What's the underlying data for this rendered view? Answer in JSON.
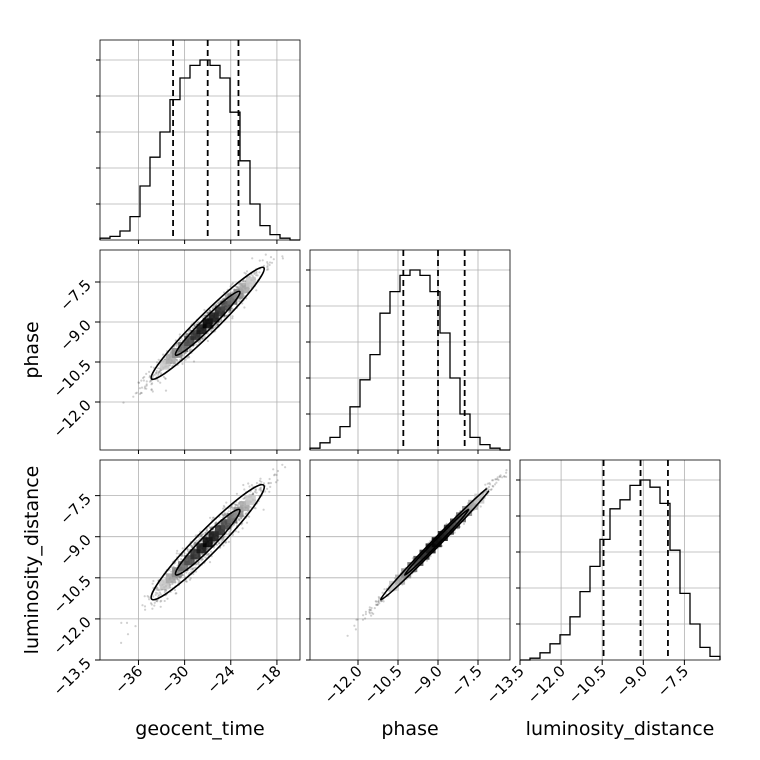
{
  "chart_data": {
    "type": "corner",
    "parameters": [
      "geocent_time",
      "phase",
      "luminosity_distance"
    ],
    "ranges": {
      "geocent_time": [
        -41,
        -15
      ],
      "phase": [
        -13.8,
        -6.3
      ],
      "luminosity_distance": [
        -13.5,
        -6.2
      ]
    },
    "ticks": {
      "geocent_time": [
        -36,
        -30,
        -24,
        -18
      ],
      "phase": [
        -12.0,
        -10.5,
        -9.0,
        -7.5
      ],
      "luminosity_distance": [
        -13.5,
        -12.0,
        -10.5,
        -9.0,
        -7.5
      ]
    },
    "tick_labels": {
      "geocent_time": [
        "−36",
        "−30",
        "−24",
        "−18"
      ],
      "phase": [
        "−12.0",
        "−10.5",
        "−9.0",
        "−7.5"
      ],
      "luminosity_distance": [
        "−13.5",
        "−12.0",
        "−10.5",
        "−9.0",
        "−7.5"
      ]
    },
    "grid": true,
    "histograms": [
      {
        "parameter": "geocent_time",
        "bin_start": -41,
        "bin_width": 1.3,
        "counts": [
          0.01,
          0.02,
          0.05,
          0.13,
          0.3,
          0.46,
          0.6,
          0.78,
          0.9,
          0.97,
          1.0,
          0.97,
          0.9,
          0.71,
          0.44,
          0.2,
          0.08,
          0.03,
          0.01,
          0.0
        ],
        "quantiles": [
          -31.5,
          -27.0,
          -23.0
        ]
      },
      {
        "parameter": "phase",
        "bin_start": -13.8,
        "bin_width": 0.375,
        "counts": [
          0.01,
          0.04,
          0.07,
          0.13,
          0.24,
          0.39,
          0.53,
          0.76,
          0.88,
          0.97,
          1.0,
          0.97,
          0.88,
          0.65,
          0.4,
          0.2,
          0.07,
          0.03,
          0.01,
          0.0
        ],
        "quantiles": [
          -10.3,
          -9.0,
          -8.0
        ]
      },
      {
        "parameter": "luminosity_distance",
        "bin_start": -13.5,
        "bin_width": 0.365,
        "counts": [
          0.0,
          0.01,
          0.04,
          0.09,
          0.14,
          0.24,
          0.38,
          0.52,
          0.67,
          0.84,
          0.89,
          0.97,
          1.0,
          0.96,
          0.87,
          0.61,
          0.37,
          0.2,
          0.07,
          0.02
        ],
        "quantiles": [
          -10.45,
          -9.1,
          -8.1
        ]
      }
    ],
    "pairs": [
      {
        "x": "geocent_time",
        "y": "phase",
        "mean": [
          -27,
          -9.05
        ],
        "sd": [
          3.5,
          1.0
        ],
        "rho": 0.97
      },
      {
        "x": "geocent_time",
        "y": "luminosity_distance",
        "mean": [
          -27,
          -9.2
        ],
        "sd": [
          3.5,
          1.0
        ],
        "rho": 0.96
      },
      {
        "x": "phase",
        "y": "luminosity_distance",
        "mean": [
          -9.05,
          -9.2
        ],
        "sd": [
          1.0,
          1.0
        ],
        "rho": 0.995
      }
    ]
  }
}
